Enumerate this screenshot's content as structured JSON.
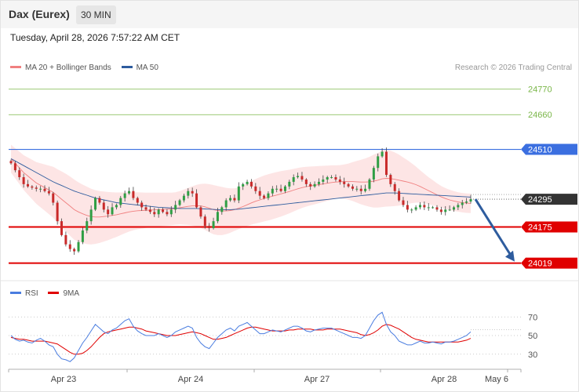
{
  "header": {
    "title": "Dax (Eurex)",
    "timeframe": "30 MIN"
  },
  "datetime": "Tuesday, April 28, 2026 7:57:22 AM CET",
  "credit": "Research © 2026 Trading Central",
  "legend_main": [
    {
      "label": "MA 20 + Bollinger Bands",
      "color": "#f08080"
    },
    {
      "label": "MA 50",
      "color": "#2e5c9e"
    }
  ],
  "legend_rsi": [
    {
      "label": "RSI",
      "color": "#4a7de0"
    },
    {
      "label": "9MA",
      "color": "#e00000"
    }
  ],
  "colors": {
    "bull": "#2f9e44",
    "bear": "#c92a2a",
    "resistance": "#3b6fe0",
    "support": "#e00000",
    "target": "#7ab648",
    "last_price": "#333333",
    "arrow": "#2e5c9e",
    "band_fill": "#fde0e0"
  },
  "chart_data": {
    "type": "candlestick",
    "x_labels": [
      "Apr 23",
      "Apr 24",
      "Apr 27",
      "Apr 28",
      "May 6"
    ],
    "y_range": [
      23950,
      24830
    ],
    "levels": [
      {
        "value": 24770,
        "label": "24770",
        "kind": "target"
      },
      {
        "value": 24660,
        "label": "24660",
        "kind": "target"
      },
      {
        "value": 24510,
        "label": "24510",
        "kind": "resistance"
      },
      {
        "value": 24295,
        "label": "24295",
        "kind": "last"
      },
      {
        "value": 24175,
        "label": "24175",
        "kind": "support"
      },
      {
        "value": 24019,
        "label": "24019",
        "kind": "support"
      }
    ],
    "forecast_arrow": {
      "from": 24295,
      "to": 24019
    },
    "closes": [
      24450,
      24420,
      24390,
      24360,
      24350,
      24345,
      24340,
      24340,
      24330,
      24320,
      24280,
      24200,
      24140,
      24100,
      24080,
      24070,
      24110,
      24160,
      24200,
      24250,
      24300,
      24280,
      24250,
      24230,
      24260,
      24270,
      24300,
      24320,
      24330,
      24300,
      24280,
      24260,
      24250,
      24240,
      24230,
      24250,
      24240,
      24230,
      24250,
      24270,
      24290,
      24310,
      24330,
      24320,
      24260,
      24220,
      24180,
      24170,
      24200,
      24240,
      24260,
      24290,
      24300,
      24290,
      24350,
      24360,
      24370,
      24350,
      24330,
      24310,
      24300,
      24320,
      24340,
      24340,
      24330,
      24350,
      24370,
      24390,
      24395,
      24380,
      24360,
      24350,
      24360,
      24370,
      24380,
      24390,
      24390,
      24380,
      24370,
      24360,
      24350,
      24340,
      24340,
      24330,
      24340,
      24380,
      24430,
      24480,
      24500,
      24400,
      24360,
      24330,
      24290,
      24270,
      24250,
      24250,
      24260,
      24270,
      24260,
      24260,
      24260,
      24250,
      24240,
      24250,
      24250,
      24260,
      24270,
      24280,
      24285,
      24295
    ],
    "ma20": [
      24470,
      24450,
      24430,
      24410,
      24395,
      24380,
      24365,
      24355,
      24345,
      24335,
      24325,
      24310,
      24295,
      24280,
      24265,
      24250,
      24240,
      24232,
      24225,
      24220,
      24218,
      24218,
      24220,
      24222,
      24225,
      24228,
      24232,
      24236,
      24240,
      24243,
      24245,
      24246,
      24247,
      24248,
      24249,
      24250,
      24251,
      24252,
      24253,
      24255,
      24258,
      24261,
      24264,
      24266,
      24267,
      24266,
      24262,
      24256,
      24250,
      24246,
      24244,
      24244,
      24246,
      24250,
      24256,
      24263,
      24271,
      24279,
      24286,
      24292,
      24298,
      24303,
      24308,
      24313,
      24318,
      24323,
      24328,
      24334,
      24340,
      24345,
      24349,
      24352,
      24355,
      24358,
      24361,
      24364,
      24367,
      24369,
      24370,
      24371,
      24371,
      24371,
      24370,
      24369,
      24369,
      24370,
      24373,
      24377,
      24383,
      24385,
      24384,
      24381,
      24377,
      24373,
      24369,
      24364,
      24358,
      24350,
      24341,
      24332,
      24323,
      24314,
      24305,
      24298,
      24292,
      24287,
      24283,
      24280,
      24278,
      24277
    ],
    "ma50": [
      24470,
      24460,
      24450,
      24440,
      24430,
      24420,
      24410,
      24400,
      24390,
      24380,
      24370,
      24362,
      24354,
      24346,
      24338,
      24330,
      24324,
      24318,
      24312,
      24306,
      24300,
      24296,
      24292,
      24288,
      24284,
      24280,
      24278,
      24276,
      24274,
      24272,
      24270,
      24268,
      24266,
      24264,
      24262,
      24260,
      24259,
      24258,
      24257,
      24256,
      24255,
      24255,
      24255,
      24255,
      24255,
      24254,
      24253,
      24252,
      24251,
      24250,
      24250,
      24250,
      24250,
      24251,
      24252,
      24254,
      24256,
      24258,
      24260,
      24262,
      24264,
      24266,
      24268,
      24270,
      24272,
      24274,
      24276,
      24278,
      24280,
      24282,
      24284,
      24286,
      24288,
      24290,
      24292,
      24294,
      24296,
      24298,
      24300,
      24302,
      24304,
      24306,
      24308,
      24310,
      24312,
      24314,
      24316,
      24318,
      24320,
      24322,
      24322,
      24322,
      24321,
      24320,
      24319,
      24318,
      24317,
      24316,
      24315,
      24314,
      24313,
      24312,
      24311,
      24310,
      24309,
      24308,
      24307,
      24306,
      24305,
      24304
    ],
    "bb_width": [
      60,
      65,
      70,
      75,
      80,
      85,
      90,
      95,
      100,
      105,
      110,
      115,
      120,
      125,
      128,
      130,
      128,
      126,
      124,
      120,
      116,
      112,
      108,
      104,
      100,
      96,
      92,
      88,
      85,
      82,
      80,
      78,
      76,
      75,
      74,
      73,
      72,
      71,
      70,
      70,
      72,
      76,
      80,
      85,
      90,
      95,
      100,
      104,
      106,
      106,
      104,
      100,
      96,
      92,
      90,
      90,
      92,
      94,
      96,
      98,
      99,
      100,
      100,
      99,
      98,
      96,
      94,
      92,
      90,
      88,
      86,
      84,
      82,
      80,
      78,
      76,
      74,
      72,
      72,
      74,
      78,
      84,
      90,
      96,
      102,
      108,
      114,
      118,
      122,
      122,
      120,
      116,
      110,
      102,
      94,
      86,
      78,
      70,
      64,
      58,
      54,
      50,
      47,
      45,
      44,
      43,
      42,
      42,
      42,
      42
    ],
    "rsi": [
      50,
      46,
      44,
      45,
      43,
      42,
      45,
      47,
      44,
      40,
      38,
      30,
      25,
      24,
      22,
      26,
      34,
      42,
      48,
      55,
      62,
      58,
      54,
      52,
      56,
      58,
      62,
      66,
      68,
      60,
      55,
      52,
      50,
      50,
      50,
      52,
      50,
      48,
      50,
      54,
      56,
      58,
      60,
      58,
      48,
      42,
      38,
      36,
      42,
      48,
      52,
      56,
      58,
      55,
      60,
      62,
      64,
      60,
      56,
      52,
      52,
      54,
      56,
      55,
      54,
      56,
      58,
      60,
      60,
      58,
      55,
      54,
      56,
      57,
      58,
      58,
      58,
      56,
      54,
      52,
      50,
      48,
      48,
      47,
      50,
      58,
      66,
      72,
      75,
      62,
      54,
      50,
      44,
      42,
      40,
      40,
      42,
      44,
      42,
      42,
      43,
      42,
      41,
      43,
      43,
      44,
      46,
      48,
      50,
      54
    ],
    "rsi_ma": [
      48,
      47,
      46,
      46,
      45,
      44,
      44,
      44,
      44,
      43,
      42,
      41,
      38,
      35,
      32,
      30,
      30,
      31,
      34,
      38,
      43,
      48,
      52,
      54,
      55,
      56,
      57,
      58,
      59,
      59,
      58,
      57,
      55,
      54,
      53,
      52,
      51,
      50,
      50,
      50,
      51,
      52,
      53,
      54,
      53,
      52,
      50,
      48,
      46,
      46,
      47,
      48,
      50,
      52,
      54,
      56,
      58,
      59,
      59,
      58,
      57,
      56,
      55,
      55,
      55,
      55,
      56,
      56,
      57,
      57,
      57,
      57,
      56,
      56,
      56,
      57,
      57,
      57,
      57,
      56,
      55,
      54,
      53,
      51,
      50,
      51,
      53,
      56,
      60,
      62,
      61,
      59,
      57,
      54,
      51,
      48,
      46,
      45,
      44,
      43,
      43,
      43,
      43,
      43,
      43,
      43,
      43,
      44,
      45,
      47
    ],
    "rsi_levels": [
      70,
      50,
      30
    ],
    "rsi_range": [
      18,
      82
    ]
  }
}
